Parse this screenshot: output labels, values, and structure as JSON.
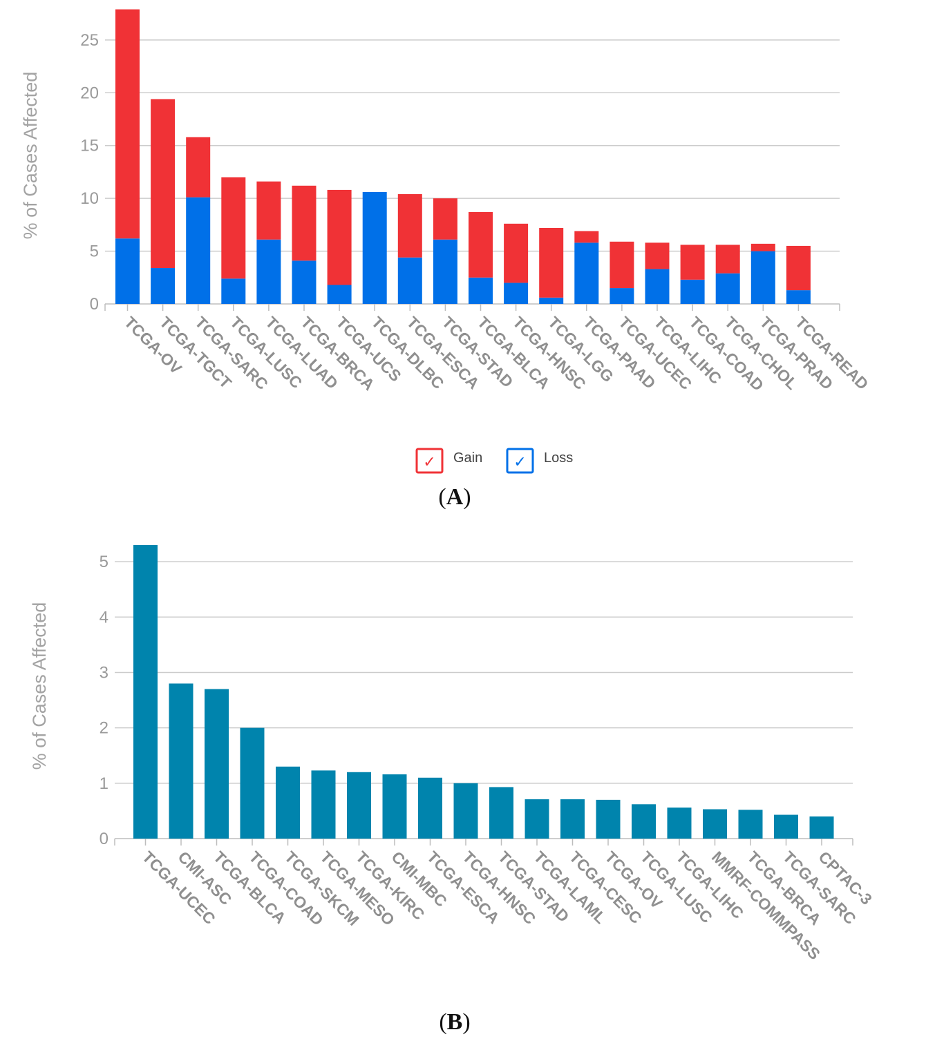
{
  "chart_data": [
    {
      "type": "bar",
      "stacked": true,
      "panel_label": "A",
      "ylabel": "% of Cases Affected",
      "ylim": [
        0,
        28
      ],
      "yticks": [
        0,
        5,
        10,
        15,
        20,
        25
      ],
      "categories": [
        "TCGA-OV",
        "TCGA-TGCT",
        "TCGA-SARC",
        "TCGA-LUSC",
        "TCGA-LUAD",
        "TCGA-BRCA",
        "TCGA-UCS",
        "TCGA-DLBC",
        "TCGA-ESCA",
        "TCGA-STAD",
        "TCGA-BLCA",
        "TCGA-HNSC",
        "TCGA-LGG",
        "TCGA-PAAD",
        "TCGA-UCEC",
        "TCGA-LIHC",
        "TCGA-COAD",
        "TCGA-CHOL",
        "TCGA-PRAD",
        "TCGA-READ"
      ],
      "series": [
        {
          "name": "Loss",
          "color": "#0070e8",
          "values": [
            6.2,
            3.4,
            10.1,
            2.4,
            6.1,
            4.1,
            1.8,
            10.6,
            4.4,
            6.1,
            2.5,
            2.0,
            0.6,
            5.8,
            1.5,
            3.3,
            2.3,
            2.9,
            5.0,
            1.3
          ]
        },
        {
          "name": "Gain",
          "color": "#f03236",
          "values": [
            21.7,
            16.0,
            5.7,
            9.6,
            5.5,
            7.1,
            9.0,
            0.0,
            6.0,
            3.9,
            6.2,
            5.6,
            6.6,
            1.1,
            4.4,
            2.5,
            3.3,
            2.7,
            0.7,
            4.2
          ]
        }
      ],
      "legend": [
        {
          "label": "Gain",
          "check": "✓",
          "color": "#f03236"
        },
        {
          "label": "Loss",
          "check": "✓",
          "color": "#0070e8"
        }
      ]
    },
    {
      "type": "bar",
      "panel_label": "B",
      "ylabel": "% of Cases Affected",
      "ylim": [
        0,
        5.5
      ],
      "yticks": [
        0,
        1,
        2,
        3,
        4,
        5
      ],
      "color": "#0084ad",
      "categories": [
        "TCGA-UCEC",
        "CMI-ASC",
        "TCGA-BLCA",
        "TCGA-COAD",
        "TCGA-SKCM",
        "TCGA-MESO",
        "TCGA-KIRC",
        "CMI-MBC",
        "TCGA-ESCA",
        "TCGA-HNSC",
        "TCGA-STAD",
        "TCGA-LAML",
        "TCGA-CESC",
        "TCGA-OV",
        "TCGA-LUSC",
        "TCGA-LIHC",
        "MMRF-COMMPASS",
        "TCGA-BRCA",
        "TCGA-SARC",
        "CPTAC-3"
      ],
      "values": [
        5.3,
        2.8,
        2.7,
        2.0,
        1.3,
        1.23,
        1.2,
        1.16,
        1.1,
        1.0,
        0.93,
        0.71,
        0.71,
        0.7,
        0.62,
        0.56,
        0.53,
        0.52,
        0.43,
        0.4
      ]
    }
  ]
}
